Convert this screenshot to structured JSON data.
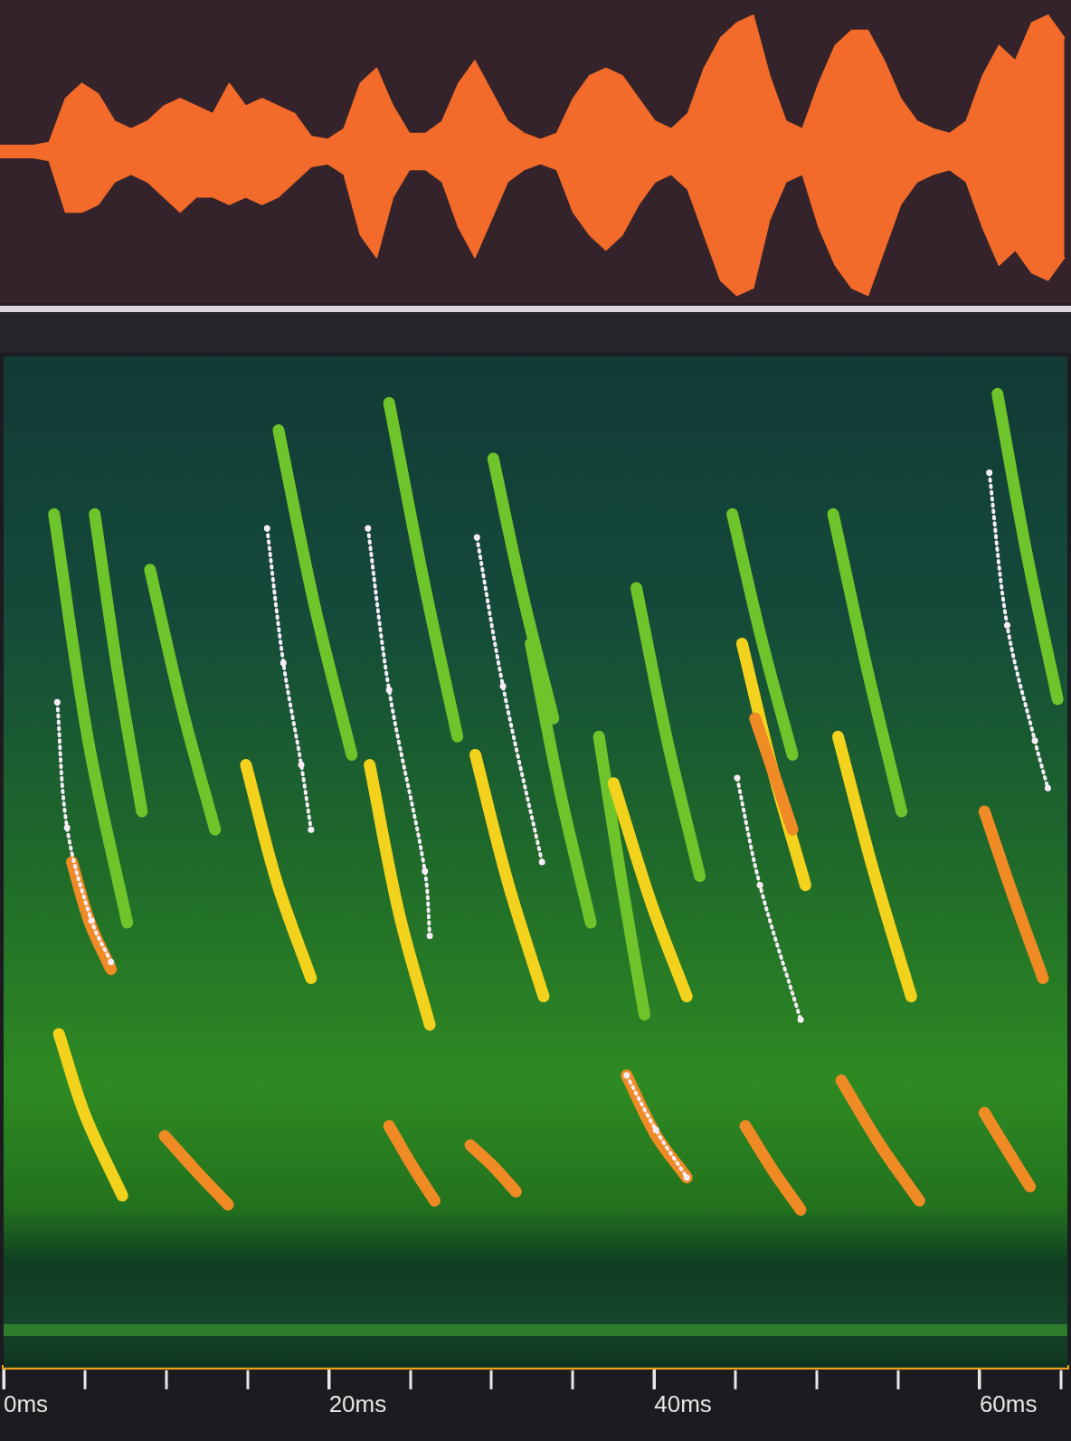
{
  "chart_data": [
    {
      "type": "area",
      "x": [
        0,
        1,
        2,
        3,
        4,
        5,
        6,
        7,
        8,
        9,
        10,
        11,
        12,
        13,
        14,
        15,
        16,
        17,
        18,
        19,
        20,
        21,
        22,
        23,
        24,
        25,
        26,
        27,
        28,
        29,
        30,
        31,
        32,
        33,
        34,
        35,
        36,
        37,
        38,
        39,
        40,
        41,
        42,
        43,
        44,
        45,
        46,
        47,
        48,
        49,
        50,
        51,
        52,
        53,
        54,
        55,
        56,
        57,
        58,
        59,
        60,
        61,
        62,
        63,
        64,
        65
      ],
      "series": [
        {
          "color": "#f26b2a",
          "values": [
            0.04,
            0.04,
            0.04,
            0.06,
            0.35,
            0.45,
            0.38,
            0.2,
            0.15,
            0.2,
            0.3,
            0.35,
            0.3,
            0.25,
            0.45,
            0.3,
            0.35,
            0.3,
            0.25,
            0.1,
            0.08,
            0.15,
            0.45,
            0.55,
            0.3,
            0.12,
            0.12,
            0.2,
            0.45,
            0.6,
            0.4,
            0.2,
            0.12,
            0.08,
            0.12,
            0.35,
            0.5,
            0.55,
            0.5,
            0.35,
            0.2,
            0.15,
            0.25,
            0.55,
            0.75,
            0.85,
            0.9,
            0.5,
            0.2,
            0.15,
            0.45,
            0.7,
            0.8,
            0.8,
            0.6,
            0.35,
            0.2,
            0.15,
            0.12,
            0.2,
            0.5,
            0.7,
            0.6,
            0.85,
            0.9,
            0.75
          ]
        },
        {
          "color": "#f26b2a",
          "values": [
            -0.04,
            -0.04,
            -0.04,
            -0.06,
            -0.4,
            -0.4,
            -0.35,
            -0.2,
            -0.15,
            -0.2,
            -0.3,
            -0.4,
            -0.3,
            -0.3,
            -0.35,
            -0.3,
            -0.35,
            -0.3,
            -0.2,
            -0.1,
            -0.08,
            -0.15,
            -0.55,
            -0.7,
            -0.3,
            -0.12,
            -0.12,
            -0.2,
            -0.5,
            -0.7,
            -0.45,
            -0.2,
            -0.12,
            -0.08,
            -0.12,
            -0.4,
            -0.55,
            -0.65,
            -0.55,
            -0.35,
            -0.2,
            -0.15,
            -0.25,
            -0.55,
            -0.85,
            -0.95,
            -0.9,
            -0.45,
            -0.2,
            -0.15,
            -0.5,
            -0.75,
            -0.9,
            -0.95,
            -0.65,
            -0.35,
            -0.2,
            -0.15,
            -0.12,
            -0.2,
            -0.5,
            -0.75,
            -0.65,
            -0.8,
            -0.85,
            -0.7
          ]
        }
      ],
      "xlim": [
        0,
        65.4
      ],
      "ylim": [
        -1,
        1
      ],
      "tick_labels": false,
      "grid": false
    },
    {
      "type": "line",
      "xlim": [
        0,
        65.4
      ],
      "ylim": [
        0,
        100
      ],
      "xticks": [
        {
          "value": 0,
          "label": "0ms"
        },
        {
          "value": 20,
          "label": "20ms"
        },
        {
          "value": 40,
          "label": "40ms"
        },
        {
          "value": 60,
          "label": "60ms"
        }
      ],
      "tick_labels": "x",
      "grid": false,
      "series": [
        {
          "color": "#2f7d2a",
          "line_style": "solid",
          "x": [
            0,
            65.4
          ],
          "values": [
            3.7,
            3.7
          ]
        },
        {
          "color": "#6ec42a",
          "line_style": "solid",
          "x": [
            3.1,
            5.2,
            7.6
          ],
          "values": [
            84.4,
            62.0,
            44.0
          ]
        },
        {
          "color": "#6ec42a",
          "line_style": "solid",
          "x": [
            5.6,
            7.0,
            8.5
          ],
          "values": [
            84.4,
            69.0,
            55.0
          ]
        },
        {
          "color": "#6ec42a",
          "line_style": "solid",
          "x": [
            9.0,
            11.0,
            13.0
          ],
          "values": [
            78.9,
            65.0,
            53.2
          ]
        },
        {
          "color": "#6ec42a",
          "line_style": "solid",
          "x": [
            16.9,
            19.1,
            21.4
          ],
          "values": [
            92.7,
            75.5,
            60.6
          ]
        },
        {
          "color": "#6ec42a",
          "line_style": "solid",
          "x": [
            23.7,
            25.8,
            27.9
          ],
          "values": [
            95.4,
            78.0,
            62.4
          ]
        },
        {
          "color": "#6ec42a",
          "line_style": "solid",
          "x": [
            30.1,
            31.9,
            33.8
          ],
          "values": [
            89.9,
            76.5,
            64.2
          ]
        },
        {
          "color": "#6ec42a",
          "line_style": "solid",
          "x": [
            32.4,
            34.2,
            36.1
          ],
          "values": [
            71.6,
            57.0,
            44.0
          ]
        },
        {
          "color": "#6ec42a",
          "line_style": "solid",
          "x": [
            38.9,
            40.8,
            42.8
          ],
          "values": [
            77.1,
            62.0,
            48.6
          ]
        },
        {
          "color": "#6ec42a",
          "line_style": "solid",
          "x": [
            36.6,
            38.0,
            39.4
          ],
          "values": [
            62.4,
            48.0,
            34.9
          ]
        },
        {
          "color": "#6ec42a",
          "line_style": "solid",
          "x": [
            44.8,
            46.6,
            48.5
          ],
          "values": [
            84.4,
            72.0,
            60.6
          ]
        },
        {
          "color": "#6ec42a",
          "line_style": "solid",
          "x": [
            51.0,
            53.1,
            55.2
          ],
          "values": [
            84.4,
            69.0,
            55.0
          ]
        },
        {
          "color": "#6ec42a",
          "line_style": "solid",
          "x": [
            61.1,
            62.9,
            64.8
          ],
          "values": [
            96.3,
            80.5,
            66.1
          ]
        },
        {
          "color": "#f2d21c",
          "line_style": "solid",
          "x": [
            3.4,
            5.0,
            7.3
          ],
          "values": [
            33.0,
            25.0,
            17.0
          ]
        },
        {
          "color": "#f2d21c",
          "line_style": "solid",
          "x": [
            14.9,
            16.8,
            18.9
          ],
          "values": [
            59.6,
            48.0,
            38.5
          ]
        },
        {
          "color": "#f2d21c",
          "line_style": "solid",
          "x": [
            22.5,
            24.3,
            26.2
          ],
          "values": [
            59.6,
            45.0,
            33.9
          ]
        },
        {
          "color": "#f2d21c",
          "line_style": "solid",
          "x": [
            29.0,
            31.0,
            33.2
          ],
          "values": [
            60.6,
            48.0,
            36.7
          ]
        },
        {
          "color": "#f2d21c",
          "line_style": "solid",
          "x": [
            37.5,
            39.8,
            42.0
          ],
          "values": [
            57.8,
            46.0,
            36.7
          ]
        },
        {
          "color": "#f2d21c",
          "line_style": "solid",
          "x": [
            45.4,
            47.3,
            49.3
          ],
          "values": [
            71.6,
            59.0,
            47.7
          ]
        },
        {
          "color": "#f2d21c",
          "line_style": "solid",
          "x": [
            51.3,
            53.5,
            55.8
          ],
          "values": [
            62.4,
            49.0,
            36.7
          ]
        },
        {
          "color": "#f08a24",
          "line_style": "solid",
          "x": [
            4.2,
            5.3,
            6.6
          ],
          "values": [
            50.0,
            44.0,
            39.4
          ]
        },
        {
          "color": "#f08a24",
          "line_style": "solid",
          "x": [
            9.9,
            11.8,
            13.8
          ],
          "values": [
            22.9,
            19.5,
            16.1
          ]
        },
        {
          "color": "#f08a24",
          "line_style": "solid",
          "x": [
            23.7,
            25.1,
            26.5
          ],
          "values": [
            23.9,
            20.0,
            16.5
          ]
        },
        {
          "color": "#f08a24",
          "line_style": "solid",
          "x": [
            28.7,
            30.1,
            31.5
          ],
          "values": [
            22.0,
            19.9,
            17.4
          ]
        },
        {
          "color": "#f08a24",
          "line_style": "solid",
          "x": [
            38.3,
            40.1,
            42.0
          ],
          "values": [
            28.9,
            23.0,
            18.8
          ]
        },
        {
          "color": "#f08a24",
          "line_style": "solid",
          "x": [
            45.6,
            47.3,
            49.0
          ],
          "values": [
            23.9,
            19.5,
            15.6
          ]
        },
        {
          "color": "#f08a24",
          "line_style": "solid",
          "x": [
            46.2,
            47.4,
            48.5
          ],
          "values": [
            64.2,
            58.5,
            53.2
          ]
        },
        {
          "color": "#f08a24",
          "line_style": "solid",
          "x": [
            51.5,
            53.9,
            56.3
          ],
          "values": [
            28.4,
            22.0,
            16.5
          ]
        },
        {
          "color": "#f08a24",
          "line_style": "solid",
          "x": [
            60.3,
            62.1,
            63.9
          ],
          "values": [
            55.0,
            46.5,
            38.5
          ]
        },
        {
          "color": "#f08a24",
          "line_style": "solid",
          "x": [
            60.3,
            61.7,
            63.1
          ],
          "values": [
            25.2,
            21.5,
            17.9
          ]
        },
        {
          "color": "#f8ecf8",
          "line_style": "dotted",
          "marker": "circle",
          "x": [
            3.3,
            3.9,
            5.4,
            6.6
          ],
          "values": [
            65.8,
            53.4,
            44.2,
            40.1
          ]
        },
        {
          "color": "#f8ecf8",
          "line_style": "dotted",
          "marker": "circle",
          "x": [
            16.2,
            17.2,
            18.3,
            18.9
          ],
          "values": [
            83.0,
            69.7,
            59.6,
            53.2
          ]
        },
        {
          "color": "#f8ecf8",
          "line_style": "dotted",
          "marker": "circle",
          "x": [
            22.4,
            23.7,
            25.9,
            26.2
          ],
          "values": [
            83.0,
            67.0,
            49.1,
            42.7
          ]
        },
        {
          "color": "#f8ecf8",
          "line_style": "dotted",
          "marker": "circle",
          "x": [
            29.1,
            30.7,
            33.1
          ],
          "values": [
            82.1,
            67.4,
            50.0
          ]
        },
        {
          "color": "#f8ecf8",
          "line_style": "dotted",
          "marker": "circle",
          "x": [
            38.3,
            40.1,
            42.0
          ],
          "values": [
            28.9,
            23.5,
            18.8
          ]
        },
        {
          "color": "#f8ecf8",
          "line_style": "dotted",
          "marker": "circle",
          "x": [
            45.1,
            46.5,
            49.0
          ],
          "values": [
            58.3,
            47.7,
            34.4
          ]
        },
        {
          "color": "#f8ecf8",
          "line_style": "dotted",
          "marker": "circle",
          "x": [
            60.6,
            61.7,
            63.4,
            64.2
          ],
          "values": [
            88.5,
            73.4,
            62.0,
            57.3
          ]
        }
      ]
    }
  ]
}
